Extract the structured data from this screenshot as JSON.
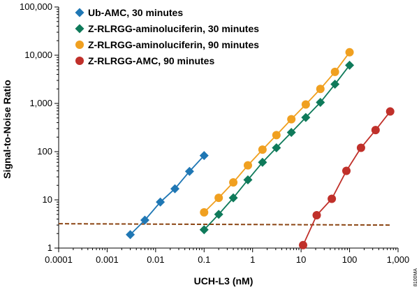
{
  "chart_data": {
    "type": "scatter",
    "xlabel": "UCH-L3 (nM)",
    "ylabel": "Signal-to-Noise Ratio",
    "xscale": "log",
    "yscale": "log",
    "xlim": [
      0.0001,
      1000
    ],
    "ylim": [
      1,
      100000
    ],
    "x_tick_labels": [
      "0.0001",
      "0.001",
      "0.01",
      "0.1",
      "1",
      "10",
      "100",
      "1,000"
    ],
    "y_tick_labels": [
      "1",
      "10",
      "100",
      "1,000",
      "10,000",
      "100,000"
    ],
    "grid": false,
    "legend_position": "top-left",
    "series": [
      {
        "name": "Ub-AMC, 30 minutes",
        "color": "#1f77b4",
        "marker": "diamond",
        "x": [
          0.003,
          0.006,
          0.0125,
          0.025,
          0.05,
          0.1
        ],
        "y": [
          1.9,
          3.8,
          9,
          17,
          39,
          83
        ]
      },
      {
        "name": "Z-RLRGG-aminoluciferin, 30 minutes",
        "color": "#0f7a5a",
        "marker": "diamond",
        "x": [
          0.1,
          0.2,
          0.4,
          0.8,
          1.6,
          3.1,
          6.3,
          12.5,
          25,
          50,
          100
        ],
        "y": [
          2.4,
          5,
          11,
          26,
          60,
          120,
          250,
          510,
          1050,
          2500,
          6200
        ]
      },
      {
        "name": "Z-RLRGG-aminoluciferin, 90 minutes",
        "color": "#f0a020",
        "marker": "circle",
        "x": [
          0.1,
          0.2,
          0.4,
          0.8,
          1.6,
          3.1,
          6.3,
          12.5,
          25,
          50,
          100
        ],
        "y": [
          5.5,
          11,
          23,
          52,
          110,
          220,
          470,
          950,
          2000,
          4500,
          11500
        ]
      },
      {
        "name": "Z-RLRGG-AMC, 90 minutes",
        "color": "#c0302a",
        "marker": "circle",
        "x": [
          11,
          21,
          43,
          86,
          172,
          344,
          688
        ],
        "y": [
          1.15,
          4.8,
          10.5,
          40,
          120,
          280,
          680
        ]
      }
    ],
    "baseline": {
      "style": "dashed",
      "color": "#8b4513",
      "y_start": 3.2,
      "y_end": 3.0
    },
    "watermark": "8100MA"
  }
}
